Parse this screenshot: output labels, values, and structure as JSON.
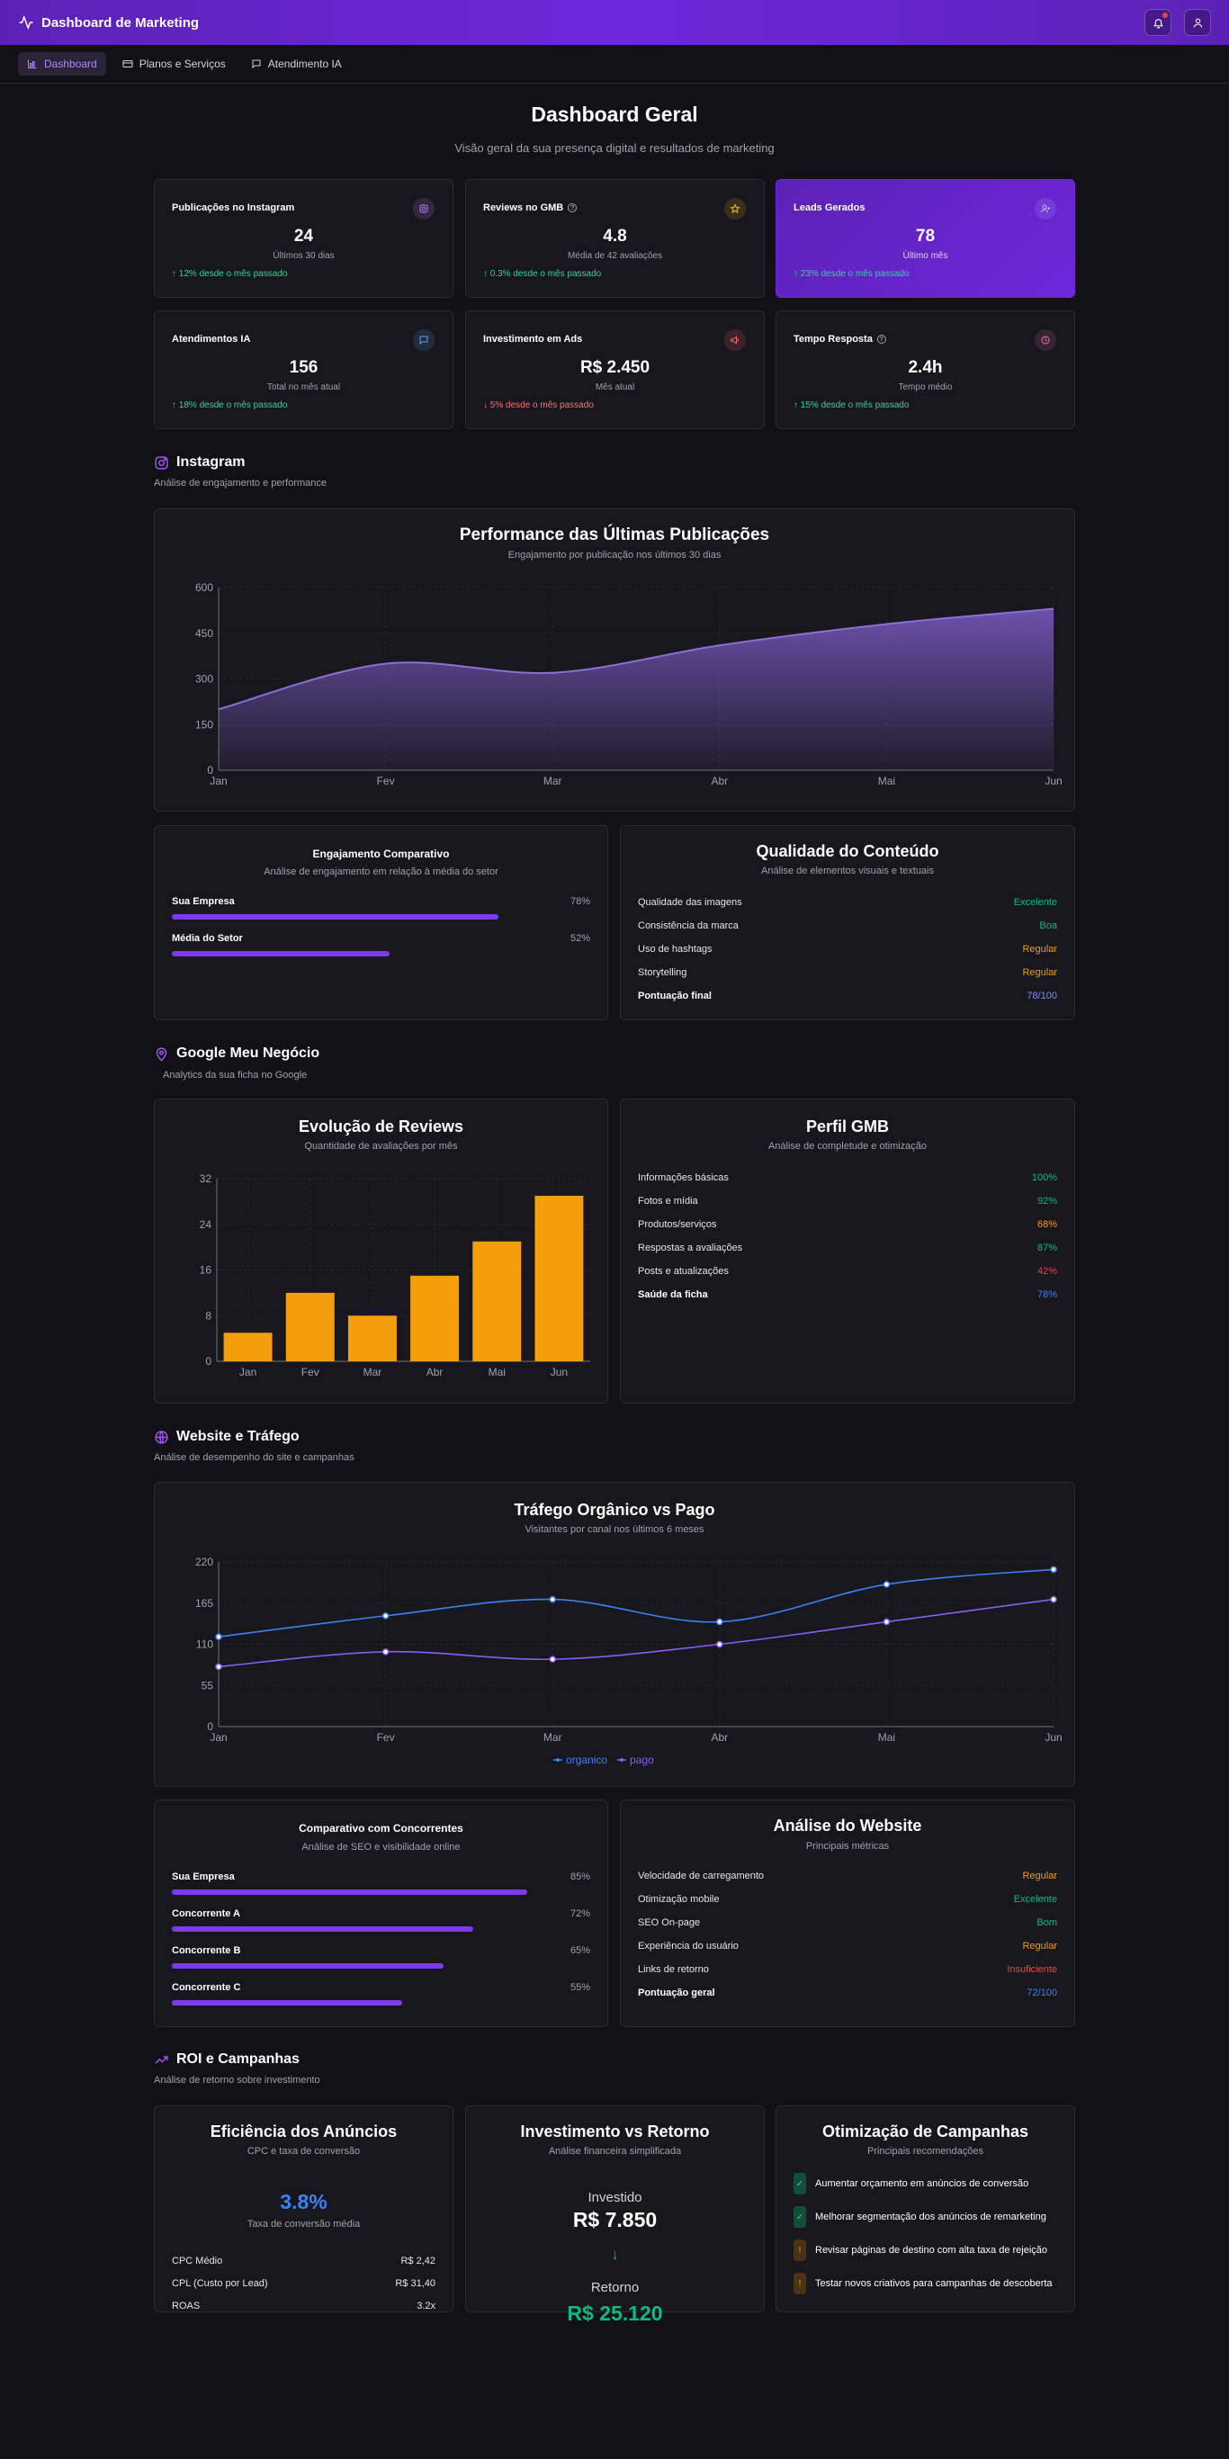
{
  "header": {
    "title": "Dashboard de Marketing"
  },
  "nav": {
    "tabs": [
      "Dashboard",
      "Planos e Serviços",
      "Atendimento IA"
    ]
  },
  "page": {
    "title": "Dashboard Geral",
    "subtitle": "Visão geral da sua presença digital e resultados de marketing"
  },
  "stats": [
    {
      "label": "Publicações no Instagram",
      "value": "24",
      "caption": "Últimos 30 dias",
      "trend": "↑ 12% desde o mês passado",
      "dir": "up",
      "icon": "instagram-icon",
      "color": "#c084fc"
    },
    {
      "label": "Reviews no GMB",
      "value": "4.8",
      "caption": "Média de 42 avaliações",
      "trend": "↑ 0.3% desde o mês passado",
      "dir": "up",
      "icon": "star-icon",
      "color": "#fbbf24"
    },
    {
      "label": "Leads Gerados",
      "value": "78",
      "caption": "Último mês",
      "trend": "↑ 23% desde o mês passado",
      "dir": "up",
      "icon": "user-plus-icon",
      "color": "#c4b5fd"
    },
    {
      "label": "Atendimentos IA",
      "value": "156",
      "caption": "Total no mês atual",
      "trend": "↑ 18% desde o mês passado",
      "dir": "up",
      "icon": "message-icon",
      "color": "#60a5fa"
    },
    {
      "label": "Investimento em Ads",
      "value": "R$ 2.450",
      "caption": "Mês atual",
      "trend": "↓ 5% desde o mês passado",
      "dir": "down",
      "icon": "megaphone-icon",
      "color": "#f87171"
    },
    {
      "label": "Tempo Resposta",
      "value": "2.4h",
      "caption": "Tempo médio",
      "trend": "↑ 15% desde o mês passado",
      "dir": "up",
      "icon": "clock-icon",
      "color": "#f472b6"
    }
  ],
  "instagram": {
    "title": "Instagram",
    "subtitle": "Análise de engajamento e performance",
    "engagement": {
      "title": "Engajamento Comparativo",
      "subtitle": "Análise de engajamento em relação à média do setor",
      "items": [
        {
          "label": "Sua Empresa",
          "value": "78%",
          "pct": 78
        },
        {
          "label": "Média do Setor",
          "value": "52%",
          "pct": 52
        }
      ]
    },
    "quality": {
      "title": "Qualidade do Conteúdo",
      "subtitle": "Análise de elementos visuais e textuais",
      "rows": [
        {
          "label": "Qualidade das imagens",
          "value": "Excelente",
          "color": "#10b981"
        },
        {
          "label": "Consistência da marca",
          "value": "Boa",
          "color": "#10b981"
        },
        {
          "label": "Uso de hashtags",
          "value": "Regular",
          "color": "#f59e0b"
        },
        {
          "label": "Storytelling",
          "value": "Regular",
          "color": "#f59e0b"
        },
        {
          "label": "Pontuação final",
          "value": "78/100",
          "color": "#818cf8"
        }
      ]
    }
  },
  "gmb": {
    "title": "Google Meu Negócio",
    "subtitle": "Analytics da sua ficha no Google",
    "profile": {
      "title": "Perfil GMB",
      "subtitle": "Análise de completude e otimização",
      "rows": [
        {
          "label": "Informações básicas",
          "value": "100%",
          "color": "#10b981"
        },
        {
          "label": "Fotos e mídia",
          "value": "92%",
          "color": "#10b981"
        },
        {
          "label": "Produtos/serviços",
          "value": "68%",
          "color": "#f59e0b"
        },
        {
          "label": "Respostas a avaliações",
          "value": "87%",
          "color": "#10b981"
        },
        {
          "label": "Posts e atualizações",
          "value": "42%",
          "color": "#ef4444"
        },
        {
          "label": "Saúde da ficha",
          "value": "78%",
          "color": "#3b82f6"
        }
      ]
    }
  },
  "website": {
    "title": "Website e Tráfego",
    "subtitle": "Análise de desempenho do site e campanhas",
    "competitors": {
      "title": "Comparativo com Concorrentes",
      "subtitle": "Análise de SEO e visibilidade online",
      "items": [
        {
          "label": "Sua Empresa",
          "value": "85%",
          "pct": 85
        },
        {
          "label": "Concorrente A",
          "value": "72%",
          "pct": 72
        },
        {
          "label": "Concorrente B",
          "value": "65%",
          "pct": 65
        },
        {
          "label": "Concorrente C",
          "value": "55%",
          "pct": 55
        }
      ]
    },
    "analysis": {
      "title": "Análise do Website",
      "subtitle": "Principais métricas",
      "rows": [
        {
          "label": "Velocidade de carregamento",
          "value": "Regular",
          "color": "#f59e0b"
        },
        {
          "label": "Otimização mobile",
          "value": "Excelente",
          "color": "#10b981"
        },
        {
          "label": "SEO On-page",
          "value": "Bom",
          "color": "#10b981"
        },
        {
          "label": "Experiência do usuário",
          "value": "Regular",
          "color": "#f59e0b"
        },
        {
          "label": "Links de retorno",
          "value": "Insuficiente",
          "color": "#ef4444"
        },
        {
          "label": "Pontuação geral",
          "value": "72/100",
          "color": "#3b82f6"
        }
      ]
    }
  },
  "roi": {
    "title": "ROI e Campanhas",
    "subtitle": "Análise de retorno sobre investimento",
    "efficiency": {
      "title": "Eficiência dos Anúncios",
      "subtitle": "CPC e taxa de conversão",
      "rate": "3.8%",
      "rate_label": "Taxa de conversão média",
      "rows": [
        {
          "label": "CPC Médio",
          "value": "R$ 2,42"
        },
        {
          "label": "CPL (Custo por Lead)",
          "value": "R$ 31,40"
        },
        {
          "label": "ROAS",
          "value": "3.2x"
        }
      ]
    },
    "investment": {
      "title": "Investimento vs Retorno",
      "subtitle": "Análise financeira simplificada",
      "invested_label": "Investido",
      "invested": "R$ 7.850",
      "arrow": "↓",
      "return_label": "Retorno",
      "return": "R$ 25.120"
    },
    "optimization": {
      "title": "Otimização de Campanhas",
      "subtitle": "Principais recomendações",
      "items": [
        {
          "text": "Aumentar orçamento em anúncios de conversão",
          "status": "done"
        },
        {
          "text": "Melhorar segmentação dos anúncios de remarketing",
          "status": "done"
        },
        {
          "text": "Revisar páginas de destino com alta taxa de rejeição",
          "status": "pending"
        },
        {
          "text": "Testar novos criativos para campanhas de descoberta",
          "status": "pending"
        }
      ]
    }
  },
  "chart_data": [
    {
      "type": "area",
      "title": "Performance das Últimas Publicações",
      "subtitle": "Engajamento por publicação nos últimos 30 dias",
      "categories": [
        "Jan",
        "Fev",
        "Mar",
        "Abr",
        "Mai",
        "Jun"
      ],
      "values": [
        200,
        350,
        320,
        410,
        480,
        530
      ],
      "yticks": [
        "0",
        "150",
        "300",
        "450",
        "600"
      ],
      "ylim": [
        0,
        600
      ],
      "color": "#7c5cc4"
    },
    {
      "type": "bar",
      "title": "Evolução de Reviews",
      "subtitle": "Quantidade de avaliações por mês",
      "categories": [
        "Jan",
        "Fev",
        "Mar",
        "Abr",
        "Mai",
        "Jun"
      ],
      "values": [
        5,
        12,
        8,
        15,
        21,
        29
      ],
      "yticks": [
        "0",
        "8",
        "16",
        "24",
        "32"
      ],
      "ylim": [
        0,
        32
      ],
      "color": "#f59e0b"
    },
    {
      "type": "line",
      "title": "Tráfego Orgânico vs Pago",
      "subtitle": "Visitantes por canal nos últimos 6 meses",
      "categories": [
        "Jan",
        "Fev",
        "Mar",
        "Abr",
        "Mai",
        "Jun"
      ],
      "series": [
        {
          "name": "organico",
          "values": [
            120,
            148,
            170,
            140,
            190,
            210
          ],
          "color": "#3b82f6"
        },
        {
          "name": "pago",
          "values": [
            80,
            100,
            90,
            110,
            140,
            170
          ],
          "color": "#8b5cf6"
        }
      ],
      "yticks": [
        "0",
        "55",
        "110",
        "165",
        "220"
      ],
      "ylim": [
        0,
        220
      ]
    }
  ]
}
